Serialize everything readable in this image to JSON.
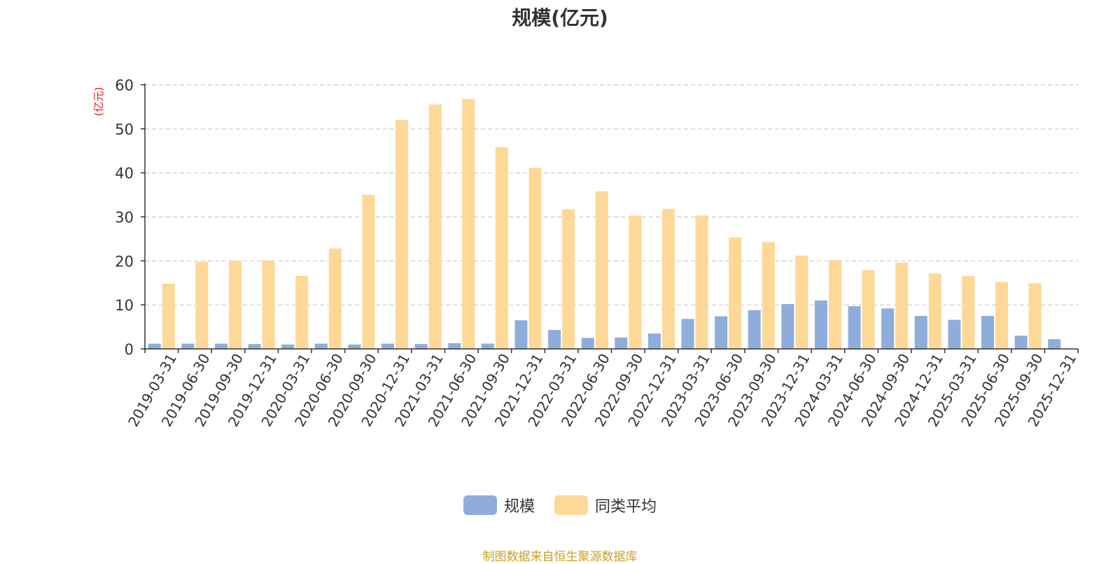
{
  "colors": {
    "primary": "#8eaddb",
    "secondary": "#fed897",
    "axis_unit": "#e4161c",
    "source": "#c9a227",
    "grid": "#cccccc"
  },
  "chart_data": {
    "type": "bar",
    "title": "规模(亿元)",
    "ylabel": "(亿元)",
    "xlabel": "",
    "ylim": [
      0,
      60
    ],
    "yticks": [
      0,
      10,
      20,
      30,
      40,
      50,
      60
    ],
    "grid": true,
    "legend_position": "bottom",
    "categories": [
      "2019-03-31",
      "2019-06-30",
      "2019-09-30",
      "2019-12-31",
      "2020-03-31",
      "2020-06-30",
      "2020-09-30",
      "2020-12-31",
      "2021-03-31",
      "2021-06-30",
      "2021-09-30",
      "2021-12-31",
      "2022-03-31",
      "2022-06-30",
      "2022-09-30",
      "2022-12-31",
      "2023-03-31",
      "2023-06-30",
      "2023-09-30",
      "2023-12-31",
      "2024-03-31",
      "2024-06-30",
      "2024-09-30",
      "2024-12-31",
      "2025-03-31",
      "2025-06-30",
      "2025-09-30",
      "2025-12-31"
    ],
    "series": [
      {
        "name": "规模",
        "values": [
          1.2,
          1.2,
          1.2,
          1.1,
          1.0,
          1.2,
          1.0,
          1.2,
          1.1,
          1.3,
          1.2,
          6.5,
          4.3,
          2.5,
          2.6,
          3.5,
          6.8,
          7.4,
          8.8,
          10.2,
          11.0,
          9.7,
          9.2,
          7.5,
          6.6,
          7.5,
          3.0,
          2.2
        ]
      },
      {
        "name": "同类平均",
        "values": [
          14.8,
          19.8,
          20.0,
          20.1,
          16.6,
          22.8,
          35.0,
          52.0,
          55.5,
          56.8,
          45.8,
          41.1,
          31.7,
          35.8,
          30.3,
          31.8,
          30.3,
          25.3,
          24.3,
          21.2,
          20.2,
          17.9,
          19.6,
          17.1,
          16.6,
          15.2,
          14.9,
          null
        ]
      }
    ]
  },
  "footer": {
    "source_note": "制图数据来自恒生聚源数据库"
  }
}
